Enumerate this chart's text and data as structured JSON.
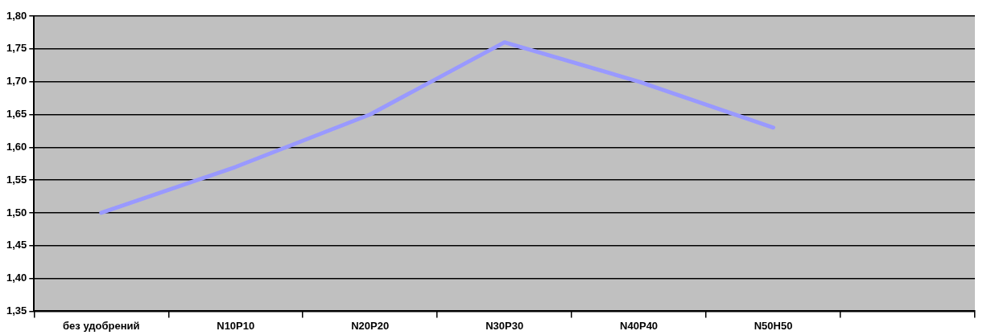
{
  "chart_data": {
    "type": "line",
    "categories": [
      "без удобрений",
      "N10P10",
      "N20P20",
      "N30P30",
      "N40P40",
      "N50H50",
      null
    ],
    "series": [
      {
        "color": "#9999ff",
        "values": [
          1.5,
          1.57,
          1.65,
          1.76,
          1.7,
          1.63,
          null
        ]
      }
    ],
    "ylim": [
      1.35,
      1.8
    ],
    "yticks": [
      {
        "value": 1.35,
        "label": "1,35"
      },
      {
        "value": 1.4,
        "label": "1,40"
      },
      {
        "value": 1.45,
        "label": "1,45"
      },
      {
        "value": 1.5,
        "label": "1,50"
      },
      {
        "value": 1.55,
        "label": "1,55"
      },
      {
        "value": 1.6,
        "label": "1,60"
      },
      {
        "value": 1.65,
        "label": "1,65"
      },
      {
        "value": 1.7,
        "label": "1,70"
      },
      {
        "value": 1.75,
        "label": "1,75"
      },
      {
        "value": 1.8,
        "label": "1,80"
      }
    ],
    "grid": "y",
    "legend": false,
    "marker": "none",
    "line_style": "solid"
  }
}
